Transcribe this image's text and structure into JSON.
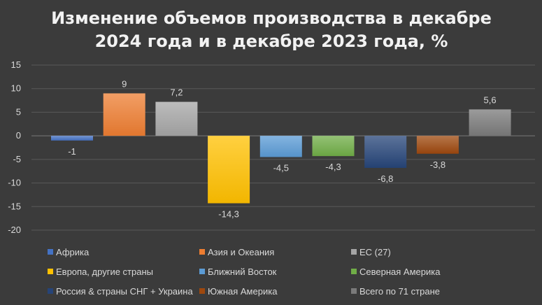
{
  "chart_data": {
    "type": "bar",
    "title_lines": [
      "Изменение объемов производства в декабре",
      "2024 года и в декабре 2023 года, %"
    ],
    "ylim": [
      -20,
      15
    ],
    "yticks": [
      15,
      10,
      5,
      0,
      -5,
      -10,
      -15,
      -20
    ],
    "grid": true,
    "legend_position": "bottom",
    "series": [
      {
        "name": "Африка",
        "value": -1,
        "label": "-1",
        "color": "#4472c4"
      },
      {
        "name": "Азия и Океания",
        "value": 9,
        "label": "9",
        "color": "#ed7d31"
      },
      {
        "name": "ЕС (27)",
        "value": 7.2,
        "label": "7,2",
        "color": "#a5a5a5"
      },
      {
        "name": "Европа, другие страны",
        "value": -14.3,
        "label": "-14,3",
        "color": "#ffc000"
      },
      {
        "name": "Ближний Восток",
        "value": -4.5,
        "label": "-4,5",
        "color": "#5b9bd5"
      },
      {
        "name": "Северная Америка",
        "value": -4.3,
        "label": "-4,3",
        "color": "#70ad47"
      },
      {
        "name": "Россия & страны СНГ + Украина",
        "value": -6.8,
        "label": "-6,8",
        "color": "#264478"
      },
      {
        "name": "Южная Америка",
        "value": -3.8,
        "label": "-3,8",
        "color": "#9e480e"
      },
      {
        "name": "Всего по 71 стране",
        "value": 5.6,
        "label": "5,6",
        "color": "#7a7a7a"
      }
    ]
  }
}
